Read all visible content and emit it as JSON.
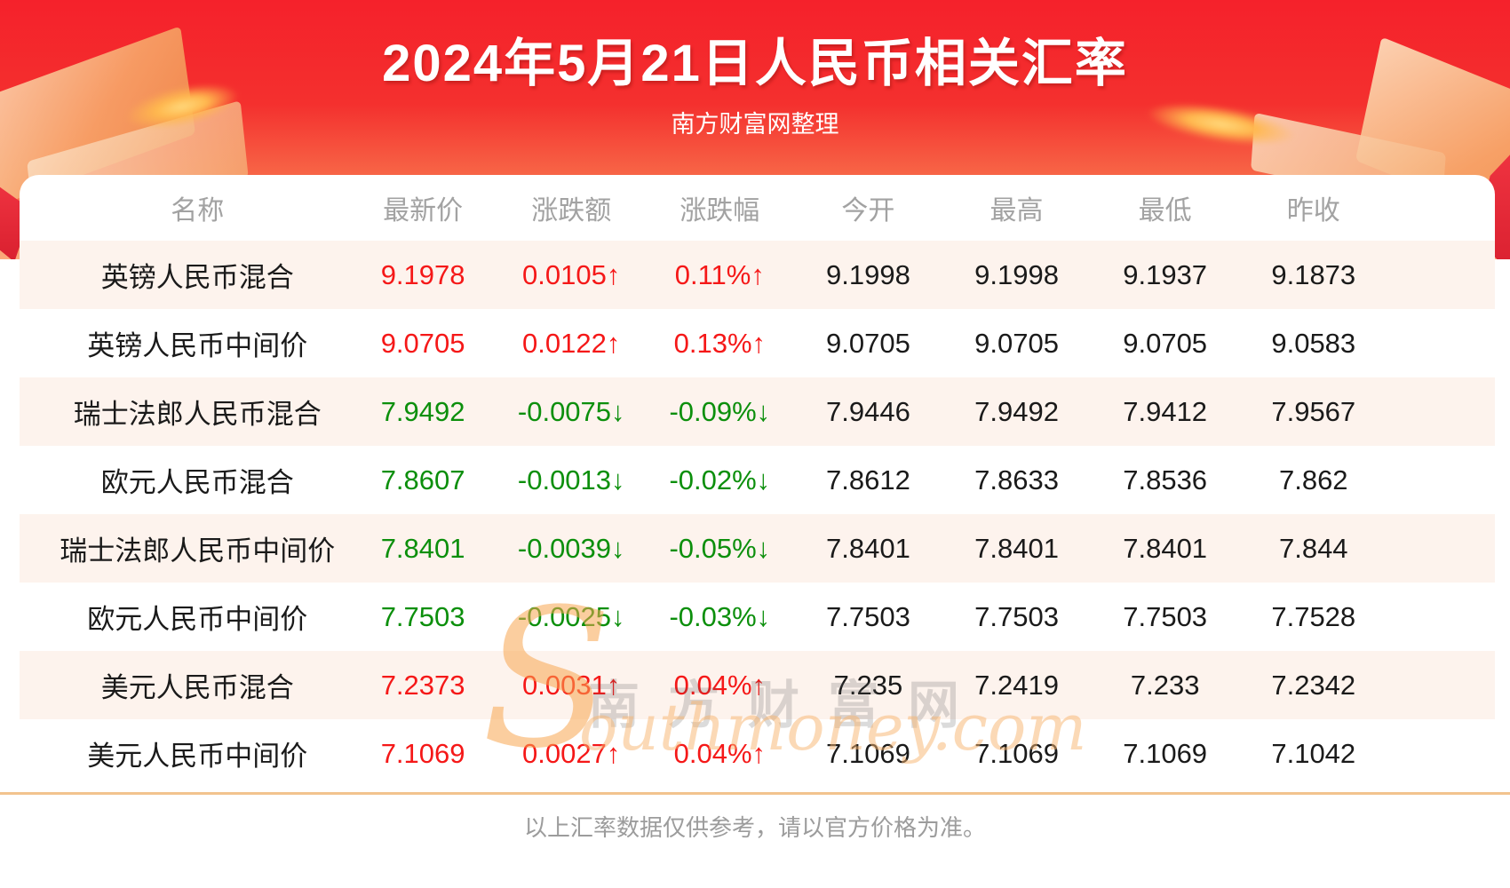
{
  "header": {
    "title": "2024年5月21日人民币相关汇率",
    "subtitle": "南方财富网整理"
  },
  "chart_data": {
    "type": "table",
    "title": "2024年5月21日人民币相关汇率",
    "subtitle": "南方财富网整理",
    "columns": [
      "名称",
      "最新价",
      "涨跌额",
      "涨跌幅",
      "今开",
      "最高",
      "最低",
      "昨收"
    ],
    "arrow_up": "↑",
    "arrow_down": "↓",
    "rows": [
      {
        "name": "英镑人民币混合",
        "latest": "9.1978",
        "change": "0.0105",
        "change_pct": "0.11%",
        "direction": "up",
        "open": "9.1998",
        "high": "9.1998",
        "low": "9.1937",
        "prev_close": "9.1873"
      },
      {
        "name": "英镑人民币中间价",
        "latest": "9.0705",
        "change": "0.0122",
        "change_pct": "0.13%",
        "direction": "up",
        "open": "9.0705",
        "high": "9.0705",
        "low": "9.0705",
        "prev_close": "9.0583"
      },
      {
        "name": "瑞士法郎人民币混合",
        "latest": "7.9492",
        "change": "-0.0075",
        "change_pct": "-0.09%",
        "direction": "down",
        "open": "7.9446",
        "high": "7.9492",
        "low": "7.9412",
        "prev_close": "7.9567"
      },
      {
        "name": "欧元人民币混合",
        "latest": "7.8607",
        "change": "-0.0013",
        "change_pct": "-0.02%",
        "direction": "down",
        "open": "7.8612",
        "high": "7.8633",
        "low": "7.8536",
        "prev_close": "7.862"
      },
      {
        "name": "瑞士法郎人民币中间价",
        "latest": "7.8401",
        "change": "-0.0039",
        "change_pct": "-0.05%",
        "direction": "down",
        "open": "7.8401",
        "high": "7.8401",
        "low": "7.8401",
        "prev_close": "7.844"
      },
      {
        "name": "欧元人民币中间价",
        "latest": "7.7503",
        "change": "-0.0025",
        "change_pct": "-0.03%",
        "direction": "down",
        "open": "7.7503",
        "high": "7.7503",
        "low": "7.7503",
        "prev_close": "7.7528"
      },
      {
        "name": "美元人民币混合",
        "latest": "7.2373",
        "change": "0.0031",
        "change_pct": "0.04%",
        "direction": "up",
        "open": "7.235",
        "high": "7.2419",
        "low": "7.233",
        "prev_close": "7.2342"
      },
      {
        "name": "美元人民币中间价",
        "latest": "7.1069",
        "change": "0.0027",
        "change_pct": "0.04%",
        "direction": "up",
        "open": "7.1069",
        "high": "7.1069",
        "low": "7.1069",
        "prev_close": "7.1042"
      }
    ]
  },
  "watermark": {
    "cn": "南方财富网",
    "en_initial": "S",
    "en_rest": "outhmoney.com"
  },
  "footer": {
    "note": "以上汇率数据仅供参考，请以官方价格为准。"
  },
  "colors": {
    "up": "#f51818",
    "down": "#0c8f0c",
    "banner_red": "#f5212b",
    "banner_peach": "#fbab7c",
    "row_alt": "#fdf3ed",
    "divider": "#f2c38e"
  }
}
